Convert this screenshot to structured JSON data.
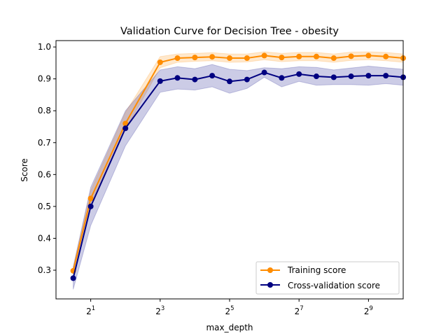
{
  "chart_data": {
    "type": "line",
    "title": "Validation Curve for Decision Tree - obesity",
    "xlabel": "max_depth",
    "ylabel": "Score",
    "x_scale": "log2",
    "xlim": [
      1,
      1024
    ],
    "ylim": [
      0.21,
      1.02
    ],
    "x_ticks": [
      {
        "base": "2",
        "exp": "1",
        "value": 2
      },
      {
        "base": "2",
        "exp": "3",
        "value": 8
      },
      {
        "base": "2",
        "exp": "5",
        "value": 32
      },
      {
        "base": "2",
        "exp": "7",
        "value": 128
      },
      {
        "base": "2",
        "exp": "9",
        "value": 512
      }
    ],
    "y_ticks": [
      "0.3",
      "0.4",
      "0.5",
      "0.6",
      "0.7",
      "0.8",
      "0.9",
      "1.0"
    ],
    "y_tick_values": [
      0.3,
      0.4,
      0.5,
      0.6,
      0.7,
      0.8,
      0.9,
      1.0
    ],
    "x": [
      1.41,
      2.0,
      4.0,
      8.0,
      11.3,
      16.0,
      22.6,
      32.0,
      45.3,
      64.0,
      90.5,
      128.0,
      181.0,
      256.0,
      362.0,
      512.0,
      724.0,
      1024.0
    ],
    "series": [
      {
        "name": "Training score",
        "color": "#ff8c00",
        "values": [
          0.298,
          0.525,
          0.76,
          0.952,
          0.965,
          0.967,
          0.969,
          0.965,
          0.965,
          0.973,
          0.967,
          0.97,
          0.97,
          0.965,
          0.971,
          0.973,
          0.97,
          0.965
        ],
        "band_low": [
          0.29,
          0.51,
          0.74,
          0.935,
          0.952,
          0.955,
          0.957,
          0.952,
          0.953,
          0.96,
          0.954,
          0.957,
          0.957,
          0.952,
          0.958,
          0.96,
          0.957,
          0.952
        ],
        "band_high": [
          0.31,
          0.55,
          0.795,
          0.97,
          0.978,
          0.98,
          0.982,
          0.978,
          0.978,
          0.985,
          0.98,
          0.983,
          0.983,
          0.978,
          0.984,
          0.985,
          0.983,
          0.978
        ]
      },
      {
        "name": "Cross-validation score",
        "color": "#000080",
        "values": [
          0.275,
          0.5,
          0.745,
          0.893,
          0.903,
          0.898,
          0.91,
          0.892,
          0.898,
          0.92,
          0.903,
          0.915,
          0.908,
          0.905,
          0.908,
          0.91,
          0.91,
          0.905
        ],
        "band_low": [
          0.24,
          0.44,
          0.69,
          0.858,
          0.868,
          0.865,
          0.875,
          0.855,
          0.87,
          0.905,
          0.875,
          0.892,
          0.88,
          0.882,
          0.882,
          0.88,
          0.885,
          0.88
        ],
        "band_high": [
          0.31,
          0.56,
          0.8,
          0.928,
          0.938,
          0.932,
          0.945,
          0.93,
          0.926,
          0.935,
          0.932,
          0.938,
          0.936,
          0.928,
          0.934,
          0.94,
          0.935,
          0.93
        ]
      }
    ],
    "legend_position": "lower-right",
    "grid": false
  }
}
